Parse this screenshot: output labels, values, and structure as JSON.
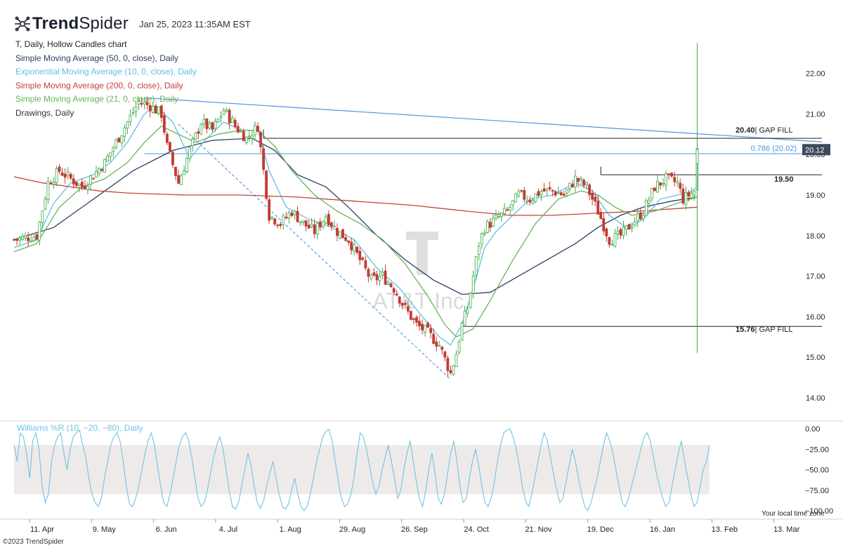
{
  "header": {
    "brand_bold": "Trend",
    "brand_light": "Spider",
    "timestamp": "Jan 25, 2023 11:35AM EST"
  },
  "legend": [
    {
      "text": "T, Daily, Hollow Candles chart",
      "color": "#222222"
    },
    {
      "text": "Simple Moving Average (50, 0, close), Daily",
      "color": "#2c3e66"
    },
    {
      "text": "Exponential Moving Average (10, 0, close), Daily",
      "color": "#5fbfe6"
    },
    {
      "text": "Simple Moving Average (200, 0, close), Daily",
      "color": "#c0443c"
    },
    {
      "text": "Simple Moving Average (21, 0, close), Daily",
      "color": "#66b45a"
    },
    {
      "text": "Drawings, Daily",
      "color": "#333333"
    }
  ],
  "watermark": {
    "symbol": "T",
    "name": "AT&T Inc."
  },
  "footer": {
    "copyright": "©2023 TrendSpider",
    "timezone": "Your local time zone"
  },
  "chart_data": {
    "type": "candlestick",
    "ticker": "T",
    "interval": "Daily",
    "x_ticks": [
      "11. Apr",
      "9. May",
      "6. Jun",
      "4. Jul",
      "1. Aug",
      "29. Aug",
      "26. Sep",
      "24. Oct",
      "21. Nov",
      "19. Dec",
      "16. Jan",
      "13. Feb",
      "13. Mar"
    ],
    "y_ticks": [
      "22.00",
      "21.00",
      "20.00",
      "19.00",
      "18.00",
      "17.00",
      "16.00",
      "15.00",
      "14.00"
    ],
    "ylim": [
      13.6,
      22.6
    ],
    "last_price": "20.12",
    "price_path": [
      [
        0,
        17.9
      ],
      [
        8,
        18.0
      ],
      [
        12,
        19.3
      ],
      [
        16,
        19.6
      ],
      [
        20,
        19.4
      ],
      [
        24,
        19.2
      ],
      [
        28,
        19.5
      ],
      [
        32,
        19.8
      ],
      [
        36,
        20.3
      ],
      [
        40,
        20.8
      ],
      [
        44,
        21.3
      ],
      [
        48,
        21.2
      ],
      [
        52,
        21.0
      ],
      [
        54,
        20.2
      ],
      [
        58,
        19.3
      ],
      [
        62,
        20.1
      ],
      [
        66,
        20.8
      ],
      [
        70,
        20.6
      ],
      [
        74,
        21.1
      ],
      [
        78,
        20.7
      ],
      [
        82,
        20.4
      ],
      [
        86,
        20.7
      ],
      [
        90,
        18.5
      ],
      [
        94,
        18.3
      ],
      [
        98,
        18.6
      ],
      [
        102,
        18.3
      ],
      [
        106,
        18.1
      ],
      [
        110,
        18.5
      ],
      [
        114,
        18.1
      ],
      [
        118,
        17.9
      ],
      [
        122,
        17.4
      ],
      [
        126,
        16.9
      ],
      [
        130,
        17.0
      ],
      [
        134,
        16.7
      ],
      [
        138,
        16.2
      ],
      [
        142,
        15.8
      ],
      [
        146,
        15.6
      ],
      [
        150,
        15.3
      ],
      [
        154,
        14.6
      ],
      [
        156,
        15.1
      ],
      [
        158,
        15.8
      ],
      [
        160,
        16.2
      ],
      [
        162,
        17.0
      ],
      [
        164,
        17.8
      ],
      [
        166,
        18.2
      ],
      [
        170,
        18.4
      ],
      [
        174,
        18.6
      ],
      [
        178,
        19.0
      ],
      [
        182,
        18.9
      ],
      [
        186,
        19.1
      ],
      [
        190,
        19.1
      ],
      [
        194,
        19.0
      ],
      [
        198,
        19.4
      ],
      [
        202,
        19.2
      ],
      [
        206,
        18.6
      ],
      [
        210,
        17.9
      ],
      [
        214,
        18.0
      ],
      [
        218,
        18.3
      ],
      [
        222,
        18.6
      ],
      [
        226,
        19.2
      ],
      [
        230,
        19.4
      ],
      [
        234,
        19.3
      ],
      [
        236,
        18.9
      ],
      [
        240,
        19.1
      ],
      [
        241,
        20.12
      ]
    ],
    "series": [
      {
        "name": "Simple Moving Average (50, 0, close), Daily",
        "values": [
          [
            0,
            17.9
          ],
          [
            14,
            18.2
          ],
          [
            28,
            18.9
          ],
          [
            42,
            19.6
          ],
          [
            56,
            20.1
          ],
          [
            70,
            20.35
          ],
          [
            84,
            20.4
          ],
          [
            92,
            20.1
          ],
          [
            100,
            19.5
          ],
          [
            110,
            19.2
          ],
          [
            118,
            18.7
          ],
          [
            128,
            18.0
          ],
          [
            138,
            17.4
          ],
          [
            148,
            16.9
          ],
          [
            158,
            16.55
          ],
          [
            168,
            16.6
          ],
          [
            178,
            17.0
          ],
          [
            188,
            17.4
          ],
          [
            198,
            17.8
          ],
          [
            206,
            18.2
          ],
          [
            214,
            18.5
          ],
          [
            222,
            18.7
          ],
          [
            232,
            18.85
          ],
          [
            241,
            18.95
          ]
        ]
      },
      {
        "name": "Exponential Moving Average (10, 0, close), Daily",
        "values": [
          [
            0,
            17.7
          ],
          [
            8,
            17.9
          ],
          [
            14,
            18.8
          ],
          [
            20,
            19.3
          ],
          [
            28,
            19.5
          ],
          [
            34,
            19.8
          ],
          [
            40,
            20.3
          ],
          [
            46,
            21.0
          ],
          [
            50,
            21.2
          ],
          [
            56,
            20.8
          ],
          [
            62,
            19.9
          ],
          [
            68,
            20.4
          ],
          [
            74,
            20.8
          ],
          [
            80,
            20.6
          ],
          [
            86,
            20.6
          ],
          [
            90,
            19.6
          ],
          [
            96,
            18.7
          ],
          [
            104,
            18.4
          ],
          [
            112,
            18.2
          ],
          [
            120,
            17.9
          ],
          [
            128,
            17.2
          ],
          [
            136,
            16.7
          ],
          [
            144,
            16.0
          ],
          [
            150,
            15.5
          ],
          [
            154,
            15.3
          ],
          [
            158,
            15.8
          ],
          [
            162,
            16.7
          ],
          [
            166,
            17.7
          ],
          [
            170,
            18.1
          ],
          [
            176,
            18.5
          ],
          [
            182,
            18.9
          ],
          [
            190,
            19.0
          ],
          [
            198,
            19.3
          ],
          [
            204,
            19.1
          ],
          [
            210,
            18.5
          ],
          [
            216,
            18.2
          ],
          [
            222,
            18.4
          ],
          [
            228,
            18.9
          ],
          [
            234,
            19.0
          ],
          [
            238,
            19.05
          ],
          [
            241,
            19.2
          ]
        ]
      },
      {
        "name": "Simple Moving Average (200, 0, close), Daily",
        "values": [
          [
            0,
            19.45
          ],
          [
            10,
            19.3
          ],
          [
            20,
            19.2
          ],
          [
            30,
            19.1
          ],
          [
            40,
            19.05
          ],
          [
            60,
            19.0
          ],
          [
            80,
            19.0
          ],
          [
            100,
            18.95
          ],
          [
            120,
            18.85
          ],
          [
            140,
            18.75
          ],
          [
            160,
            18.6
          ],
          [
            175,
            18.5
          ],
          [
            190,
            18.5
          ],
          [
            205,
            18.55
          ],
          [
            220,
            18.6
          ],
          [
            241,
            18.7
          ]
        ]
      },
      {
        "name": "Simple Moving Average (21, 0, close), Daily",
        "values": [
          [
            0,
            17.6
          ],
          [
            8,
            17.8
          ],
          [
            16,
            18.7
          ],
          [
            24,
            19.2
          ],
          [
            32,
            19.4
          ],
          [
            40,
            19.8
          ],
          [
            46,
            20.3
          ],
          [
            52,
            20.7
          ],
          [
            58,
            20.5
          ],
          [
            64,
            20.3
          ],
          [
            72,
            20.5
          ],
          [
            80,
            20.6
          ],
          [
            86,
            20.6
          ],
          [
            92,
            20.2
          ],
          [
            98,
            19.6
          ],
          [
            106,
            19.0
          ],
          [
            114,
            18.6
          ],
          [
            122,
            18.3
          ],
          [
            130,
            17.9
          ],
          [
            138,
            17.3
          ],
          [
            146,
            16.5
          ],
          [
            152,
            15.8
          ],
          [
            156,
            15.5
          ],
          [
            162,
            15.7
          ],
          [
            168,
            16.4
          ],
          [
            176,
            17.4
          ],
          [
            184,
            18.3
          ],
          [
            192,
            18.9
          ],
          [
            200,
            19.1
          ],
          [
            206,
            19.0
          ],
          [
            212,
            18.7
          ],
          [
            218,
            18.5
          ],
          [
            226,
            18.6
          ],
          [
            234,
            18.8
          ],
          [
            241,
            18.95
          ]
        ]
      }
    ],
    "volume_spike": {
      "high": 22.75,
      "low": 15.1
    },
    "drawings": {
      "trendline_upper": {
        "from": [
          46,
          21.4
        ],
        "to": [
          241,
          20.45
        ]
      },
      "trendline_dashed": {
        "from": [
          58,
          20.75
        ],
        "to": [
          154,
          14.45
        ]
      },
      "levels": [
        {
          "price": 20.4,
          "label_bold": "20.40",
          "label_rest": "| GAP FILL",
          "from_x": 88
        },
        {
          "price": 20.02,
          "label_bold": "",
          "label_rest": "0.786 (20.02)",
          "from_x": 46
        },
        {
          "price": 19.5,
          "label_bold": "19.50",
          "label_rest": "",
          "from_x": 207
        },
        {
          "price": 15.76,
          "label_bold": "15.76",
          "label_rest": "| GAP FILL",
          "from_x": 158
        }
      ]
    },
    "indicator": {
      "name": "Williams %R (10, −20, −80), Daily",
      "y_ticks": [
        "0.00",
        "−25.00",
        "−50.00",
        "−75.00",
        "−100.00"
      ],
      "ylim": [
        -100,
        0
      ],
      "band": [
        -80,
        -20
      ],
      "values": [
        -20,
        -40,
        -5,
        -10,
        -30,
        -60,
        -15,
        -5,
        -25,
        -70,
        -90,
        -80,
        -40,
        -20,
        -10,
        -5,
        -30,
        -50,
        -25,
        -10,
        -5,
        -2,
        -20,
        -35,
        -60,
        -80,
        -90,
        -95,
        -85,
        -60,
        -40,
        -20,
        -10,
        -5,
        -15,
        -40,
        -70,
        -92,
        -95,
        -85,
        -70,
        -50,
        -30,
        -15,
        -5,
        -20,
        -45,
        -70,
        -90,
        -95,
        -80,
        -60,
        -40,
        -20,
        -10,
        -5,
        -15,
        -35,
        -60,
        -85,
        -95,
        -90,
        -75,
        -55,
        -35,
        -20,
        -10,
        -25,
        -50,
        -75,
        -95,
        -98,
        -90,
        -70,
        -50,
        -30,
        -45,
        -70,
        -90,
        -97,
        -88,
        -70,
        -55,
        -40,
        -60,
        -80,
        -95,
        -98,
        -92,
        -75,
        -60,
        -80,
        -95,
        -100,
        -95,
        -80,
        -60,
        -40,
        -25,
        -10,
        -3,
        -1,
        -15,
        -40,
        -65,
        -85,
        -95,
        -92,
        -80,
        -60,
        -30,
        -5,
        -10,
        -25,
        -45,
        -65,
        -80,
        -70,
        -50,
        -35,
        -20,
        -40,
        -60,
        -85,
        -75,
        -50,
        -30,
        -15,
        -40,
        -65,
        -85,
        -95,
        -75,
        -50,
        -30,
        -55,
        -85,
        -92,
        -80,
        -55,
        -30,
        -15,
        -40,
        -70,
        -90,
        -85,
        -60,
        -40,
        -25,
        -45,
        -70,
        -90,
        -95,
        -85,
        -65,
        -40,
        -20,
        -5,
        -2,
        0,
        -10,
        -25,
        -45,
        -70,
        -88,
        -95,
        -80,
        -60,
        -40,
        -20,
        -5,
        -15,
        -35,
        -55,
        -75,
        -90,
        -85,
        -65,
        -45,
        -25,
        -40,
        -60,
        -80,
        -95,
        -100,
        -90,
        -75,
        -60,
        -40,
        -20,
        -5,
        -15,
        -30,
        -50,
        -70,
        -90,
        -95,
        -85,
        -70,
        -55,
        -40,
        -25,
        -10,
        -5,
        -15,
        -35,
        -55,
        -70,
        -85,
        -95,
        -90,
        -70,
        -50,
        -30,
        -15,
        -40,
        -60,
        -80,
        -95,
        -90,
        -70,
        -50,
        -40,
        -20
      ]
    }
  }
}
